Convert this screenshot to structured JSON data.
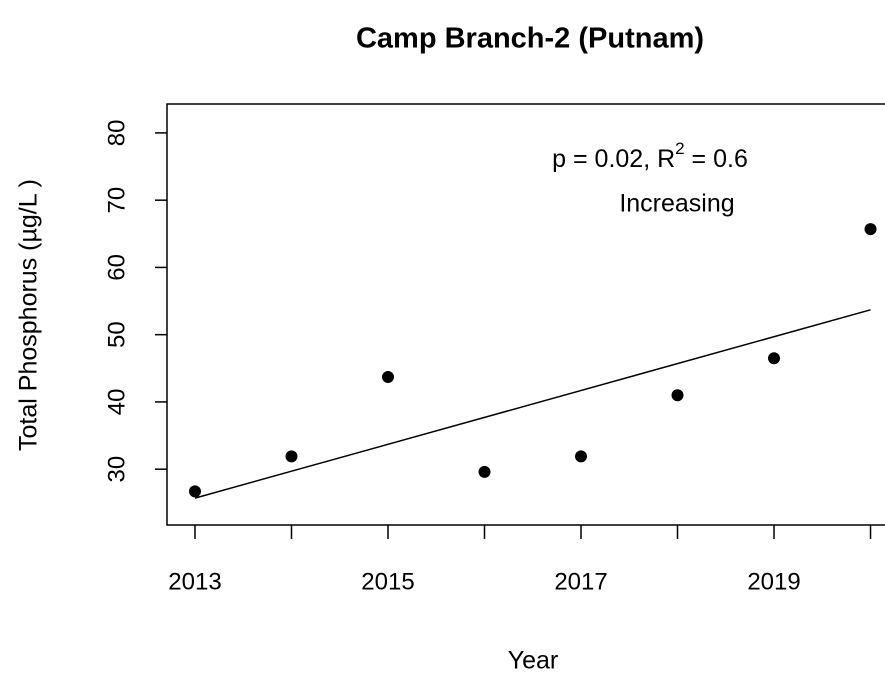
{
  "chart_data": {
    "type": "scatter",
    "title": "Camp Branch-2 (Putnam)",
    "xlabel": "Year",
    "ylabel": "Total Phosphorus (µg/L )",
    "x": [
      2013,
      2014,
      2015,
      2016,
      2017,
      2018,
      2019,
      2020
    ],
    "series": [
      {
        "color": "#000000",
        "values": [
          26.7,
          31.9,
          43.7,
          29.6,
          31.9,
          41.0,
          46.5,
          65.7
        ]
      }
    ],
    "trend": {
      "x": [
        2013,
        2020
      ],
      "values": [
        25.7,
        53.7
      ],
      "color": "#000000"
    },
    "annotation": {
      "text": "p = 0.02, R",
      "superscript": "2",
      "text_after": " = 0.6",
      "line2": "Increasing"
    },
    "xlim": [
      2012.71,
      2020.15
    ],
    "ylim": [
      21.7,
      84.3
    ],
    "xticks": [
      2013,
      2015,
      2017,
      2019
    ],
    "xminorticks": [
      2014,
      2016,
      2018,
      2020
    ],
    "yticks": [
      30,
      40,
      50,
      60,
      70,
      80
    ]
  }
}
